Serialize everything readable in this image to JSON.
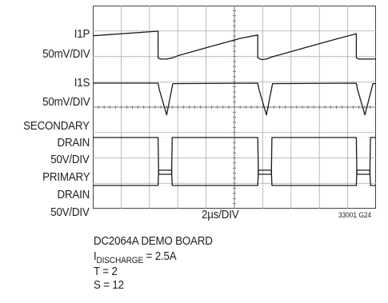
{
  "chart_data": {
    "type": "line",
    "title": "",
    "xlabel": "2µs/DIV",
    "figure_id": "33001 G24",
    "time_per_division_us": 2,
    "divisions_x": 10,
    "divisions_y": 8,
    "grid": true,
    "traces": [
      {
        "name": "I1P",
        "scale": "50mV/DIV",
        "x": [
          0.0,
          10.6,
          10.6,
          11.0,
          12.0,
          13.0,
          14.0,
          16.0,
          18.0,
          21.0,
          24.0,
          26.8,
          26.8,
          27.4,
          28.2,
          29.0,
          30.0,
          32.0,
          34.0,
          37.0,
          40.0,
          42.8,
          42.8,
          43.2,
          44.0,
          45.5,
          46.0
        ],
        "y": [
          -0.18,
          0.0,
          -1.05,
          -1.1,
          -1.1,
          -1.05,
          -0.95,
          -0.82,
          -0.68,
          -0.48,
          -0.28,
          -0.15,
          -1.05,
          -1.12,
          -1.1,
          -1.02,
          -0.95,
          -0.82,
          -0.68,
          -0.48,
          -0.28,
          -0.1,
          -1.05,
          -1.1,
          -1.1,
          -1.1,
          -1.1
        ]
      },
      {
        "name": "I1S",
        "scale": "50mV/DIV",
        "x": [
          0.0,
          10.6,
          10.8,
          12.0,
          13.0,
          26.8,
          27.0,
          28.2,
          29.2,
          42.8,
          43.0,
          44.2,
          45.5,
          46.0
        ],
        "y": [
          0.0,
          0.0,
          -0.25,
          -1.25,
          -0.02,
          0.0,
          -0.25,
          -1.25,
          -0.02,
          0.0,
          -0.25,
          -1.25,
          -0.02,
          -0.02
        ]
      },
      {
        "name": "SECONDARY DRAIN",
        "scale": "50V/DIV",
        "x": [
          0.0,
          10.6,
          10.7,
          12.8,
          12.9,
          26.8,
          26.9,
          29.0,
          29.1,
          42.8,
          42.9,
          45.0,
          45.1,
          46.0
        ],
        "y": [
          0.0,
          0.0,
          -1.45,
          -1.45,
          0.0,
          0.0,
          -1.45,
          -1.45,
          0.0,
          0.0,
          -1.45,
          -1.45,
          0.0,
          0.0
        ]
      },
      {
        "name": "PRIMARY DRAIN",
        "scale": "50V/DIV",
        "x": [
          0.0,
          10.6,
          10.7,
          12.8,
          12.9,
          26.8,
          26.9,
          29.0,
          29.1,
          42.8,
          42.9,
          45.0,
          45.1,
          46.0
        ],
        "y": [
          0.0,
          0.0,
          0.6,
          0.6,
          0.0,
          0.0,
          0.6,
          0.6,
          0.0,
          0.0,
          0.6,
          0.6,
          0.0,
          0.0
        ]
      }
    ]
  },
  "channel_labels": [
    {
      "top": "I1P",
      "bottom": "50mV/DIV"
    },
    {
      "top": "I1S",
      "bottom": "50mV/DIV"
    },
    {
      "top": "SECONDARY",
      "middle": "DRAIN",
      "bottom": "50V/DIV"
    },
    {
      "top": "PRIMARY",
      "middle": "DRAIN",
      "bottom": "50V/DIV"
    }
  ],
  "notes": {
    "board": "DC2064A DEMO BOARD",
    "discharge_main": "I",
    "discharge_sub": "DISCHARGE",
    "discharge_value": " = 2.5A",
    "t": "T = 2",
    "s": "S = 12"
  }
}
